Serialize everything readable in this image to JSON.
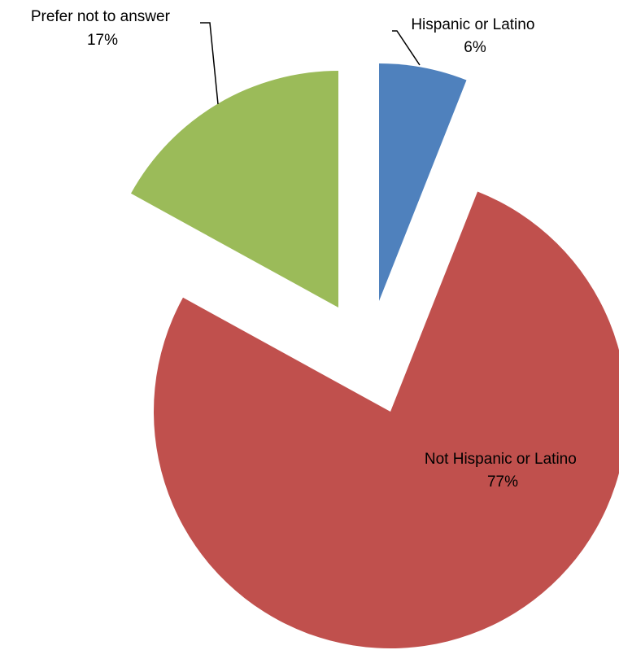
{
  "chart_data": {
    "type": "pie",
    "exploded": true,
    "slices": [
      {
        "label": "Hispanic or Latino",
        "value": 6,
        "value_label": "6%",
        "color": "#4F81BD"
      },
      {
        "label": "Not Hispanic or Latino",
        "value": 77,
        "value_label": "77%",
        "color": "#C0504D"
      },
      {
        "label": "Prefer not to answer",
        "value": 17,
        "value_label": "17%",
        "color": "#9BBB59"
      }
    ],
    "legend": "none"
  }
}
